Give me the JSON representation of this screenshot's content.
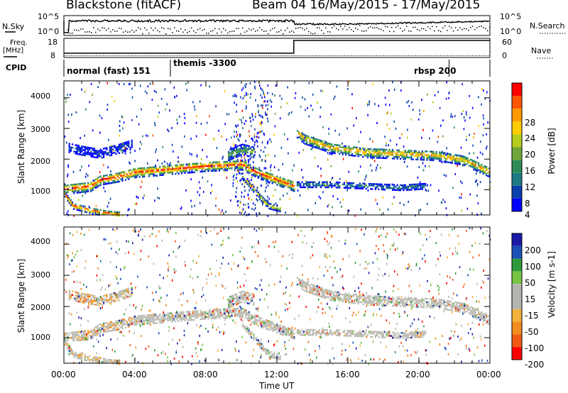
{
  "header": {
    "station": "Blackstone (fitACF)",
    "beam_date": "Beam 04  16/May/2015 - 17/May/2015"
  },
  "left_labels": {
    "nsky": "N.Sky",
    "freq": "Freq.",
    "freq_unit": "[MHz]",
    "cpid": "CPID"
  },
  "right_labels": {
    "nsearch": "N.Search",
    "nave": "Nave"
  },
  "noise_panel": {
    "left_ticks": [
      "10^5",
      "10^0"
    ],
    "right_ticks": [
      "10^5",
      "10^0"
    ]
  },
  "freq_panel": {
    "left_ticks": [
      "18",
      "8"
    ],
    "right_ticks": [
      "60",
      "0"
    ]
  },
  "cpid_panel": {
    "segments": [
      {
        "label": "normal (fast) 151",
        "start_hour": 0.0
      },
      {
        "label": "themis -3300",
        "start_hour": 6.0
      },
      {
        "label": "rbsp 200",
        "start_hour": 21.7
      }
    ]
  },
  "x_axis": {
    "label": "Time UT",
    "range_hours": [
      0,
      24
    ],
    "ticks": [
      "00:00",
      "04:00",
      "08:00",
      "12:00",
      "16:00",
      "20:00",
      "00:00"
    ]
  },
  "chart_data": [
    {
      "type": "heatmap",
      "name": "power-panel",
      "ylabel": "Slant Range [km]",
      "ylim": [
        180,
        4550
      ],
      "yticks": [
        "1000",
        "2000",
        "3000",
        "4000"
      ],
      "ytick_values": [
        1000,
        2000,
        3000,
        4000
      ],
      "colorbar": {
        "label": "Power [dB]",
        "ticks": [
          "4",
          "8",
          "12",
          "16",
          "20",
          "24",
          "28"
        ],
        "colors": [
          "#0000ff",
          "#0a3fae",
          "#1f7a88",
          "#2e8b57",
          "#6fa63a",
          "#b4cc1e",
          "#ffcc00",
          "#ff9900",
          "#ff5500",
          "#ff0000"
        ]
      },
      "bands": [
        {
          "t": [
            0.0,
            1.5,
            2.0,
            3.0,
            4.0,
            6.0,
            8.0,
            10.0,
            11.0,
            12.95
          ],
          "range_km": [
            1050,
            1150,
            1350,
            1450,
            1600,
            1700,
            1800,
            1850,
            1550,
            1150
          ],
          "width_km": 330,
          "peak": 0.9
        },
        {
          "t": [
            0.2,
            1.0,
            2.0,
            3.0,
            3.8
          ],
          "range_km": [
            2400,
            2300,
            2200,
            2350,
            2500
          ],
          "width_km": 280,
          "peak": 0.15
        },
        {
          "t": [
            0.0,
            0.5,
            1.5,
            2.5,
            3.1
          ],
          "range_km": [
            900,
            500,
            350,
            250,
            220
          ],
          "width_km": 190,
          "peak": 0.95
        },
        {
          "t": [
            10.0,
            10.5,
            11.0,
            11.5,
            12.2
          ],
          "range_km": [
            1500,
            1150,
            800,
            500,
            400
          ],
          "width_km": 170,
          "peak": 0.75
        },
        {
          "t": [
            9.2,
            10.0,
            10.7
          ],
          "range_km": [
            2150,
            2350,
            2250
          ],
          "width_km": 350,
          "peak": 0.45
        },
        {
          "t": [
            13.1,
            13.5,
            15.0,
            17.0,
            19.0,
            21.0,
            22.5,
            24.0
          ],
          "range_km": [
            2900,
            2700,
            2400,
            2250,
            2200,
            2150,
            2000,
            1600
          ],
          "width_km": 330,
          "peak": 0.72
        },
        {
          "t": [
            13.1,
            15.0,
            17.0,
            19.0,
            20.4
          ],
          "range_km": [
            1200,
            1200,
            1150,
            1100,
            1150
          ],
          "width_km": 180,
          "peak": 0.3
        }
      ],
      "noise": {
        "density": 0.28,
        "range_km": [
          180,
          4550
        ],
        "dense_hours": [
          [
            9.5,
            11.5
          ]
        ]
      }
    },
    {
      "type": "heatmap",
      "name": "velocity-panel",
      "ylabel": "Slant Range [km]",
      "ylim": [
        180,
        4550
      ],
      "yticks": [
        "1000",
        "2000",
        "3000",
        "4000"
      ],
      "ytick_values": [
        1000,
        2000,
        3000,
        4000
      ],
      "colorbar": {
        "label": "Velocity [m s-1]",
        "ticks": [
          "200",
          "100",
          "50",
          "15",
          "-15",
          "-50",
          "-100",
          "-200"
        ],
        "colors": [
          "#1a1aa8",
          "#1c4fb8",
          "#2e9a3c",
          "#76c442",
          "#b5b5b0",
          "#b5b5b0",
          "#f2b23c",
          "#f28c1e",
          "#f05a14",
          "#ff0000"
        ]
      },
      "ground_color": "#bcbcb4",
      "notes_scatter": "same echo regions as power panel, mostly ground scatter (grey) with sparse coloured velocities"
    }
  ]
}
